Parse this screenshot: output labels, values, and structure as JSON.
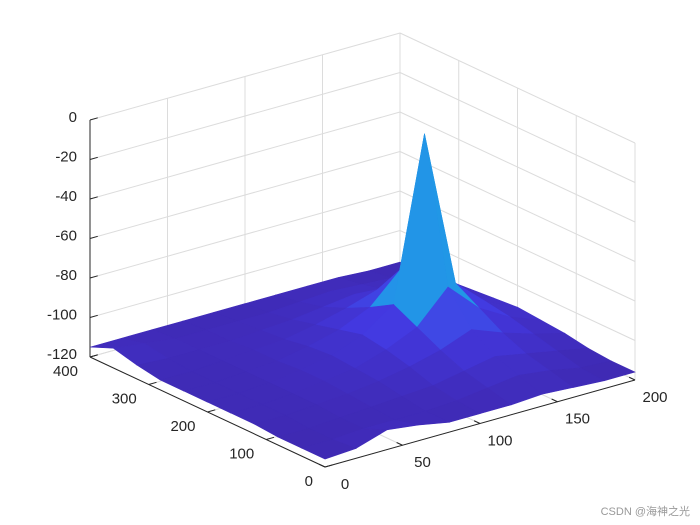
{
  "chart_data": {
    "type": "surface",
    "x": [
      0,
      20,
      40,
      60,
      80,
      100,
      120,
      140,
      160,
      180,
      200
    ],
    "y": [
      0,
      40,
      80,
      120,
      160,
      200,
      240,
      280,
      320,
      360,
      400
    ],
    "z": [
      [
        -116,
        -115,
        -110,
        -112,
        -115,
        -115,
        -115,
        -114,
        -115,
        -116,
        -116
      ],
      [
        -116,
        -116,
        -115,
        -115,
        -115,
        -114,
        -112,
        -110,
        -112,
        -115,
        -116
      ],
      [
        -116,
        -116,
        -115,
        -114,
        -113,
        -112,
        -109,
        -106,
        -109,
        -112,
        -115
      ],
      [
        -115,
        -115,
        -114,
        -113,
        -111,
        -108,
        -104,
        -98,
        -104,
        -109,
        -113
      ],
      [
        -115,
        -115,
        -114,
        -112,
        -110,
        -105,
        -98,
        -82,
        -97,
        -106,
        -112
      ],
      [
        -115,
        -115,
        -114,
        -112,
        -109,
        -103,
        -92,
        -10,
        -90,
        -104,
        -111
      ],
      [
        -115,
        -115,
        -114,
        -113,
        -110,
        -106,
        -99,
        -84,
        -98,
        -107,
        -112
      ],
      [
        -115,
        -115,
        -114,
        -113,
        -112,
        -109,
        -105,
        -100,
        -105,
        -110,
        -113
      ],
      [
        -113,
        -114,
        -114,
        -114,
        -113,
        -112,
        -110,
        -108,
        -110,
        -112,
        -114
      ],
      [
        -110,
        -112,
        -114,
        -114,
        -114,
        -114,
        -113,
        -112,
        -113,
        -114,
        -115
      ],
      [
        -115,
        -115,
        -115,
        -115,
        -115,
        -115,
        -115,
        -115,
        -115,
        -116,
        -116
      ]
    ],
    "xlim": [
      0,
      200
    ],
    "xticks": [
      0,
      50,
      100,
      150,
      200
    ],
    "ylim": [
      0,
      400
    ],
    "yticks": [
      0,
      100,
      200,
      300,
      400
    ],
    "zlim": [
      -120,
      0
    ],
    "zticks": [
      -120,
      -100,
      -80,
      -60,
      -40,
      -20,
      0
    ],
    "grid": true,
    "colormap": [
      "#3e26a8",
      "#4338e0",
      "#2f7df4",
      "#14b0d8",
      "#38c98c",
      "#b8d43a",
      "#f9fb0e"
    ],
    "clim": [
      -120,
      0
    ],
    "watermark": "CSDN @海神之光"
  }
}
